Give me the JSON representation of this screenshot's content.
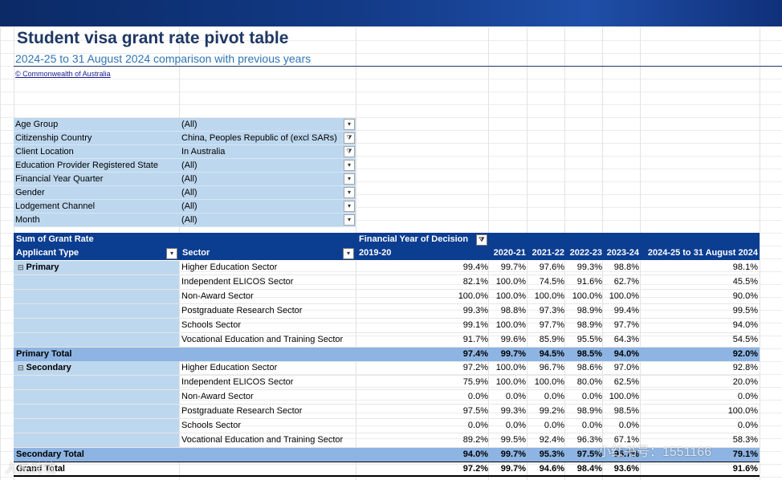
{
  "header": {
    "title": "Student visa grant rate pivot table",
    "subtitle": "2024-25 to 31 August 2024 comparison with previous years",
    "copyright": "© Commonwealth of Australia"
  },
  "filters": [
    {
      "label": "Age Group",
      "value": "(All)",
      "icon": "dropdown-icon"
    },
    {
      "label": "Citizenship Country",
      "value": "China, Peoples Republic of (excl SARs)",
      "icon": "filter-icon"
    },
    {
      "label": "Client Location",
      "value": "In Australia",
      "icon": "filter-icon"
    },
    {
      "label": "Education Provider Registered State",
      "value": "(All)",
      "icon": "dropdown-icon"
    },
    {
      "label": "Financial Year Quarter",
      "value": "(All)",
      "icon": "dropdown-icon"
    },
    {
      "label": "Gender",
      "value": "(All)",
      "icon": "dropdown-icon"
    },
    {
      "label": "Lodgement Channel",
      "value": "(All)",
      "icon": "dropdown-icon"
    },
    {
      "label": "Month",
      "value": "(All)",
      "icon": "dropdown-icon"
    }
  ],
  "pivot": {
    "measure": "Sum of Grant Rate",
    "column_field": "Financial Year of Decision",
    "row_field_1": "Applicant Type",
    "row_field_2": "Sector",
    "years": [
      "2019-20",
      "2020-21",
      "2021-22",
      "2022-23",
      "2023-24",
      "2024-25 to 31 August 2024"
    ],
    "groups": [
      {
        "name": "Primary",
        "rows": [
          {
            "sector": "Higher Education Sector",
            "values": [
              "99.4%",
              "99.7%",
              "97.6%",
              "99.3%",
              "98.8%",
              "98.1%"
            ]
          },
          {
            "sector": "Independent ELICOS Sector",
            "values": [
              "82.1%",
              "100.0%",
              "74.5%",
              "91.6%",
              "62.7%",
              "45.5%"
            ]
          },
          {
            "sector": "Non-Award Sector",
            "values": [
              "100.0%",
              "100.0%",
              "100.0%",
              "100.0%",
              "100.0%",
              "90.0%"
            ]
          },
          {
            "sector": "Postgraduate Research Sector",
            "values": [
              "99.3%",
              "98.8%",
              "97.3%",
              "98.9%",
              "99.4%",
              "99.5%"
            ]
          },
          {
            "sector": "Schools Sector",
            "values": [
              "99.1%",
              "100.0%",
              "97.7%",
              "98.9%",
              "97.7%",
              "94.0%"
            ]
          },
          {
            "sector": "Vocational Education and Training Sector",
            "values": [
              "91.7%",
              "99.6%",
              "85.9%",
              "95.5%",
              "64.3%",
              "54.5%"
            ]
          }
        ],
        "total_label": "Primary Total",
        "total": [
          "97.4%",
          "99.7%",
          "94.5%",
          "98.5%",
          "94.0%",
          "92.0%"
        ]
      },
      {
        "name": "Secondary",
        "rows": [
          {
            "sector": "Higher Education Sector",
            "values": [
              "97.2%",
              "100.0%",
              "96.7%",
              "98.6%",
              "97.0%",
              "92.8%"
            ]
          },
          {
            "sector": "Independent ELICOS Sector",
            "values": [
              "75.9%",
              "100.0%",
              "100.0%",
              "80.0%",
              "62.5%",
              "20.0%"
            ]
          },
          {
            "sector": "Non-Award Sector",
            "values": [
              "0.0%",
              "0.0%",
              "0.0%",
              "0.0%",
              "100.0%",
              "0.0%"
            ]
          },
          {
            "sector": "Postgraduate Research Sector",
            "values": [
              "97.5%",
              "99.3%",
              "99.2%",
              "98.9%",
              "98.5%",
              "100.0%"
            ]
          },
          {
            "sector": "Schools Sector",
            "values": [
              "0.0%",
              "0.0%",
              "0.0%",
              "0.0%",
              "0.0%",
              "0.0%"
            ]
          },
          {
            "sector": "Vocational Education and Training Sector",
            "values": [
              "89.2%",
              "99.5%",
              "92.4%",
              "96.3%",
              "67.1%",
              "58.3%"
            ]
          }
        ],
        "total_label": "Secondary Total",
        "total": [
          "94.0%",
          "99.7%",
          "95.3%",
          "97.5%",
          "95.7%",
          "79.1%"
        ]
      }
    ],
    "grand_total_label": "Grand Total",
    "grand_total": [
      "97.2%",
      "99.7%",
      "94.6%",
      "98.4%",
      "93.6%",
      "91.6%"
    ]
  },
  "overlay": {
    "watermark_left": "人民跨境",
    "watermark_right": "小红书号：1551166"
  }
}
